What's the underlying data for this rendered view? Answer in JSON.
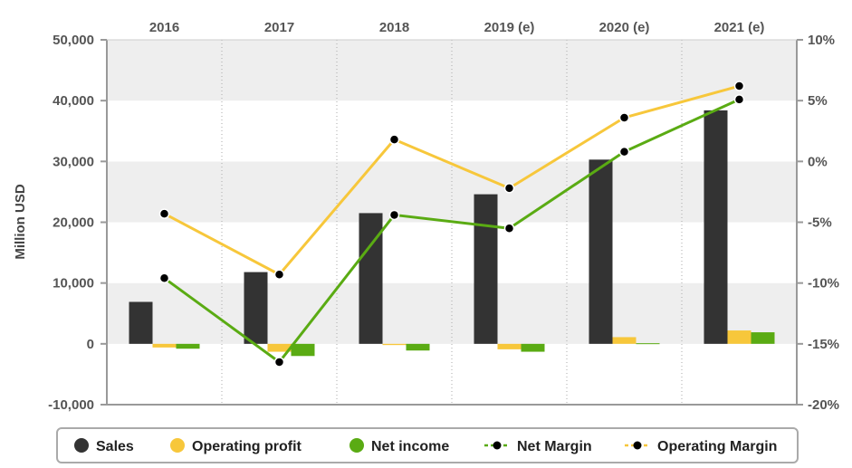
{
  "chart_data": {
    "type": "bar",
    "categories": [
      "2016",
      "2017",
      "2018",
      "2019 (e)",
      "2020 (e)",
      "2021 (e)"
    ],
    "ylabel": "Million USD",
    "ylim": [
      -10000,
      50000
    ],
    "y_ticks": [
      -10000,
      0,
      10000,
      20000,
      30000,
      40000,
      50000
    ],
    "y_tick_labels": [
      "-10,000",
      "0",
      "10,000",
      "20,000",
      "30,000",
      "40,000",
      "50,000"
    ],
    "y2lim": [
      -20,
      10
    ],
    "y2_ticks": [
      -20,
      -15,
      -10,
      -5,
      0,
      5,
      10
    ],
    "y2_tick_labels": [
      "-20%",
      "-15%",
      "-10%",
      "-5%",
      "0%",
      "5%",
      "10%"
    ],
    "grid": true,
    "legend_position": "bottom",
    "series": [
      {
        "name": "Sales",
        "kind": "bar",
        "axis": "left",
        "color": "#333333",
        "values": [
          6900,
          11800,
          21500,
          24600,
          30300,
          38400
        ]
      },
      {
        "name": "Operating profit",
        "kind": "bar",
        "axis": "left",
        "color": "#f7c73b",
        "values": [
          -600,
          -1300,
          -200,
          -900,
          1100,
          2200
        ]
      },
      {
        "name": "Net income",
        "kind": "bar",
        "axis": "left",
        "color": "#5aab13",
        "values": [
          -800,
          -2000,
          -1100,
          -1300,
          100,
          1900
        ]
      },
      {
        "name": "Net Margin",
        "kind": "line",
        "axis": "right",
        "color": "#5aab13",
        "values": [
          -9.6,
          -16.5,
          -4.4,
          -5.5,
          0.8,
          5.1
        ]
      },
      {
        "name": "Operating Margin",
        "kind": "line",
        "axis": "right",
        "color": "#f7c73b",
        "values": [
          -4.3,
          -9.3,
          1.8,
          -2.2,
          3.6,
          6.2
        ]
      }
    ]
  },
  "colors": {
    "band": "#eeeeee",
    "axis": "#999999",
    "text": "#555555",
    "marker": "#000000"
  }
}
